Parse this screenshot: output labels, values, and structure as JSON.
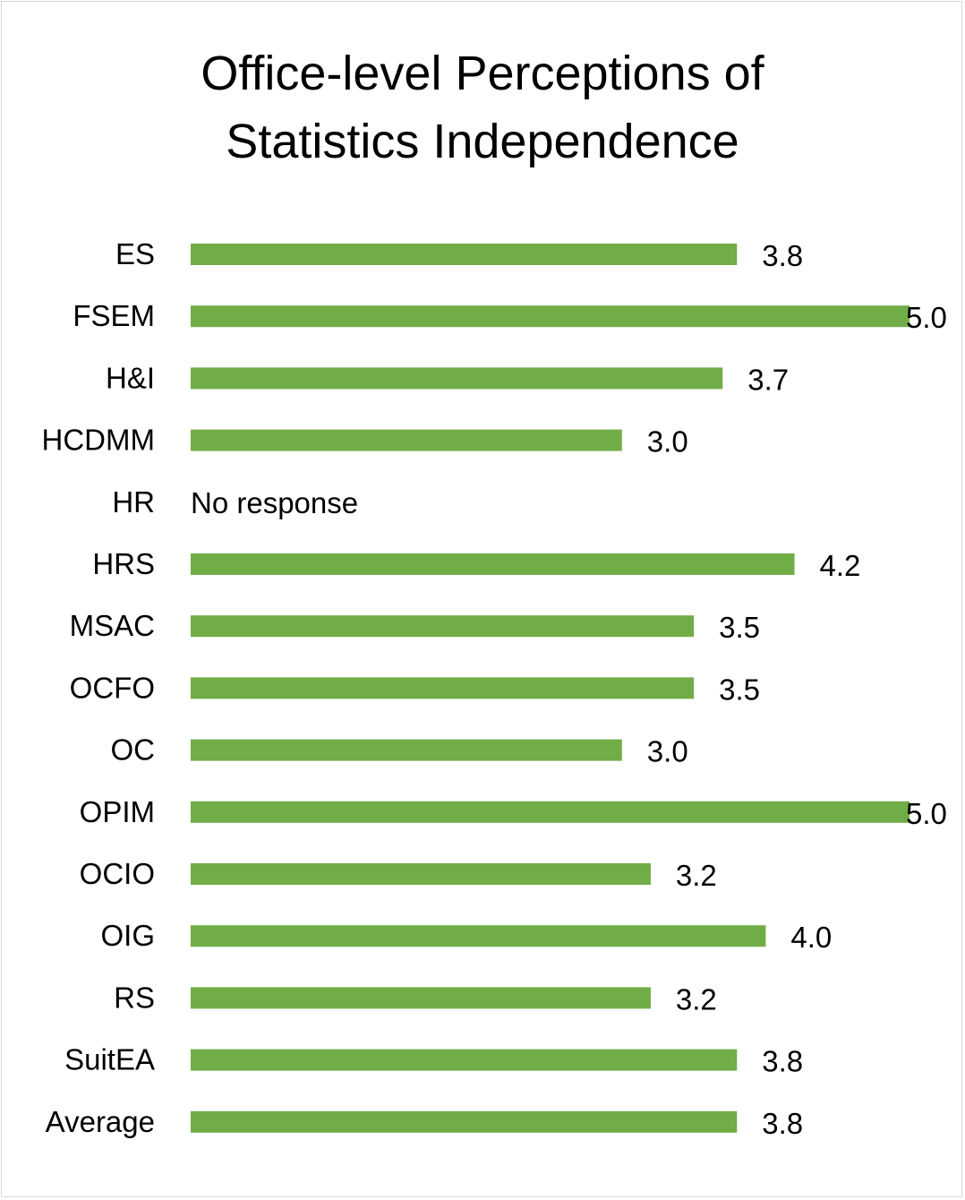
{
  "chart_data": {
    "type": "bar",
    "orientation": "horizontal",
    "title": "Office-level Perceptions of Statistics Independence",
    "title_lines": [
      "Office-level Perceptions of",
      "Statistics Independence"
    ],
    "categories": [
      "ES",
      "FSEM",
      "H&I",
      "HCDMM",
      "HR",
      "HRS",
      "MSAC",
      "OCFO",
      "OC",
      "OPIM",
      "OCIO",
      "OIG",
      "RS",
      "SuitEA",
      "Average"
    ],
    "values": [
      3.8,
      5.0,
      3.7,
      3.0,
      null,
      4.2,
      3.5,
      3.5,
      3.0,
      5.0,
      3.2,
      4.0,
      3.2,
      3.8,
      3.8
    ],
    "value_labels": [
      "3.8",
      "5.0",
      "3.7",
      "3.0",
      "",
      "4.2",
      "3.5",
      "3.5",
      "3.0",
      "5.0",
      "3.2",
      "4.0",
      "3.2",
      "3.8",
      "3.8"
    ],
    "missing_label": "No response",
    "xlim": [
      0,
      5
    ],
    "bar_color": "#70ad47",
    "grid": false,
    "legend": "none"
  }
}
